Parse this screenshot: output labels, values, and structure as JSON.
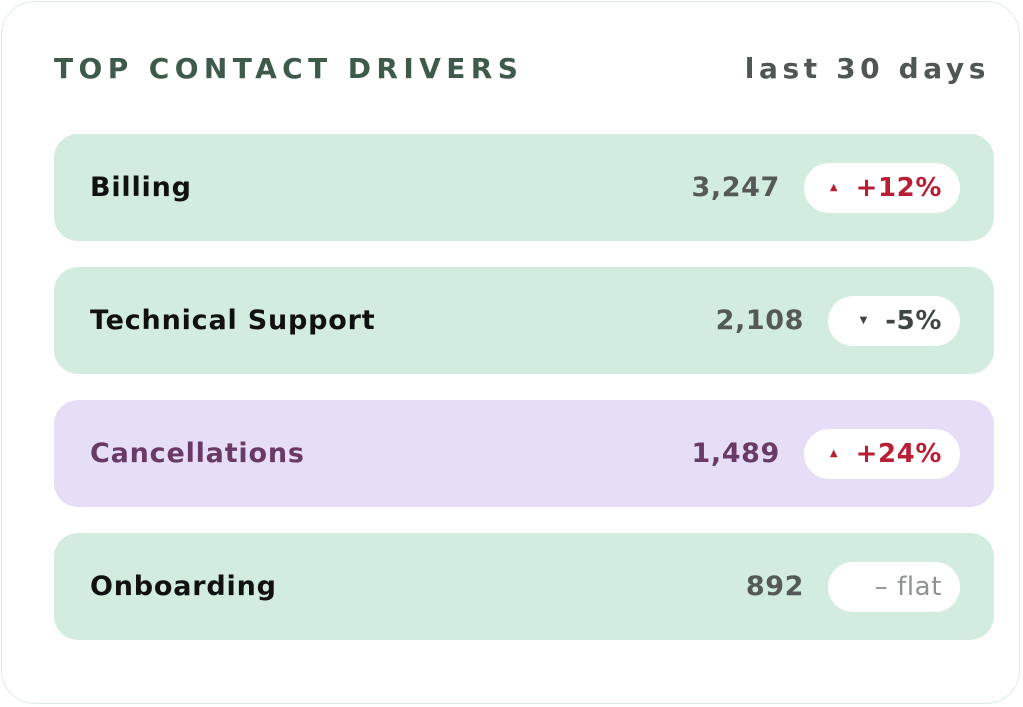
{
  "header": {
    "title": "TOP CONTACT DRIVERS",
    "range": "last 30 days"
  },
  "colors": {
    "mint_row": "#d3ece0",
    "highlight_row": "#e6def6",
    "up": "#b81f34",
    "down": "#3e4643",
    "flat": "#8e9290",
    "title": "#3d5a4a"
  },
  "drivers": [
    {
      "label": "Billing",
      "count": "3,247",
      "trend": "up",
      "arrow": "▲",
      "change": "+12%"
    },
    {
      "label": "Technical Support",
      "count": "2,108",
      "trend": "down",
      "arrow": "▼",
      "change": "-5%"
    },
    {
      "label": "Cancellations",
      "count": "1,489",
      "trend": "up",
      "arrow": "▲",
      "change": "+24%"
    },
    {
      "label": "Onboarding",
      "count": "892",
      "trend": "flat",
      "arrow": "",
      "change": "– flat"
    }
  ]
}
